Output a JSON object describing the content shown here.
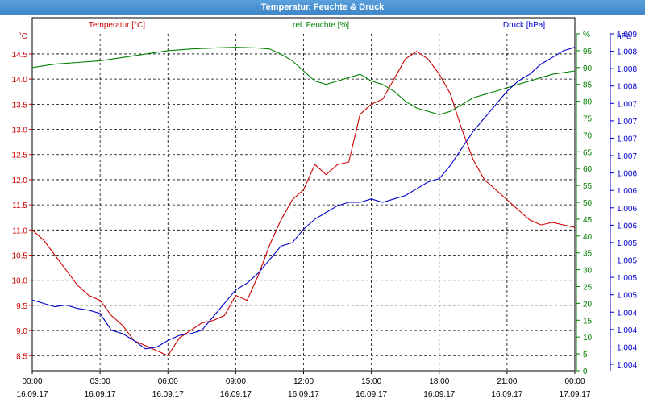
{
  "window": {
    "title": "Temperatur, Feuchte & Druck"
  },
  "chart_data": {
    "type": "line",
    "colors": {
      "temperature": "#cc0000",
      "humidity": "#008000",
      "pressure": "#0000cc",
      "title_bar": "#4a90d2"
    },
    "x_ticks": [
      {
        "time": "00:00",
        "date": "16.09.17"
      },
      {
        "time": "03:00",
        "date": "16.09.17"
      },
      {
        "time": "06:00",
        "date": "16.09.17"
      },
      {
        "time": "09:00",
        "date": "16.09.17"
      },
      {
        "time": "12:00",
        "date": "16.09.17"
      },
      {
        "time": "15:00",
        "date": "16.09.17"
      },
      {
        "time": "18:00",
        "date": "16.09.17"
      },
      {
        "time": "21:00",
        "date": "16.09.17"
      },
      {
        "time": "00:00",
        "date": "17.09.17"
      }
    ],
    "x_range_hours": [
      0,
      24
    ],
    "axes": {
      "temperature": {
        "unit": "°C",
        "header": "Temperatur [°C]",
        "range": [
          8.2,
          14.9
        ],
        "ticks": [
          "8.5",
          "9.0",
          "9.5",
          "10.0",
          "10.5",
          "11.0",
          "11.5",
          "12.0",
          "12.5",
          "13.0",
          "13.5",
          "14.0",
          "14.5"
        ]
      },
      "humidity": {
        "unit": "%",
        "header": "rel. Feuchte [%]",
        "range": [
          0,
          100
        ],
        "ticks": [
          "0",
          "5",
          "10",
          "15",
          "20",
          "25",
          "30",
          "35",
          "40",
          "45",
          "50",
          "55",
          "60",
          "65",
          "70",
          "75",
          "80",
          "85",
          "90",
          "95",
          "%"
        ]
      },
      "pressure": {
        "unit": "hPa",
        "header": "Druck [hPa]",
        "ticks": [
          "1.004",
          "1.004",
          "1.004",
          "1.004",
          "1.005",
          "1.005",
          "1.005",
          "1.005",
          "1.006",
          "1.006",
          "1.006",
          "1.006",
          "1.007",
          "1.007",
          "1.007",
          "1.007",
          "1.008",
          "1.008",
          "1.008",
          "1.009"
        ]
      }
    },
    "grid": true,
    "series": [
      {
        "key": "temperature",
        "name": "Temperatur [°C]",
        "axis": "temperature",
        "x_hours": [
          0,
          0.5,
          1,
          1.5,
          2,
          2.5,
          3,
          3.5,
          4,
          4.5,
          5,
          5.5,
          6,
          6.5,
          7,
          7.5,
          8,
          8.5,
          9,
          9.5,
          10,
          10.5,
          11,
          11.5,
          12,
          12.5,
          13,
          13.5,
          14,
          14.5,
          15,
          15.5,
          16,
          16.5,
          17,
          17.5,
          18,
          18.5,
          19,
          19.5,
          20,
          20.5,
          21,
          21.5,
          22,
          22.5,
          23,
          23.5,
          24
        ],
        "values": [
          11.0,
          10.8,
          10.5,
          10.2,
          9.9,
          9.7,
          9.6,
          9.3,
          9.1,
          8.8,
          8.7,
          8.6,
          8.5,
          8.85,
          9.0,
          9.15,
          9.2,
          9.3,
          9.7,
          9.6,
          10.1,
          10.7,
          11.2,
          11.6,
          11.8,
          12.3,
          12.1,
          12.3,
          12.35,
          13.3,
          13.5,
          13.6,
          14.0,
          14.4,
          14.55,
          14.4,
          14.1,
          13.7,
          13.0,
          12.4,
          12.0,
          11.8,
          11.6,
          11.4,
          11.2,
          11.1,
          11.15,
          11.1,
          11.05
        ]
      },
      {
        "key": "humidity",
        "name": "rel. Feuchte [%]",
        "axis": "humidity",
        "x_hours": [
          0,
          1,
          2,
          3,
          4,
          5,
          6,
          7,
          8,
          9,
          10,
          10.5,
          11,
          11.5,
          12,
          12.5,
          13,
          13.5,
          14,
          14.5,
          15,
          15.5,
          16,
          16.5,
          17,
          17.5,
          18,
          18.5,
          19,
          19.5,
          20,
          20.5,
          21,
          21.5,
          22,
          22.5,
          23,
          23.5,
          24
        ],
        "values": [
          90,
          91,
          91.5,
          92,
          93,
          94,
          95,
          95.5,
          95.8,
          96,
          95.8,
          95.5,
          94,
          92,
          89,
          86,
          85,
          86,
          87,
          88,
          86,
          85,
          83,
          80,
          78,
          77,
          76,
          77,
          79,
          81,
          82,
          83,
          84,
          85,
          86,
          87,
          88,
          88.5,
          89
        ]
      },
      {
        "key": "pressure",
        "name": "Druck [hPa]",
        "axis": "pressure",
        "note": "pressure plotted in relative units (0 = axis bottom, 100 = axis top); axis labels shown as printed",
        "x_hours": [
          0,
          0.5,
          1,
          1.5,
          2,
          2.5,
          3,
          3.5,
          4,
          4.5,
          5,
          5.5,
          6,
          6.5,
          7,
          7.5,
          8,
          8.5,
          9,
          9.5,
          10,
          10.5,
          11,
          11.5,
          12,
          12.5,
          13,
          13.5,
          14,
          14.5,
          15,
          15.5,
          16,
          16.5,
          17,
          17.5,
          18,
          18.5,
          19,
          19.5,
          20,
          20.5,
          21,
          21.5,
          22,
          22.5,
          23,
          23.5,
          24
        ],
        "values": [
          21,
          20,
          19,
          19.5,
          18.5,
          18,
          17,
          12,
          11,
          9,
          6.5,
          7,
          9,
          10.5,
          11,
          12,
          16,
          20,
          24,
          26,
          29,
          33,
          37,
          38,
          42,
          45,
          47,
          49,
          50,
          50,
          51,
          50,
          51,
          52,
          54,
          56,
          57,
          61,
          66,
          71,
          75,
          79,
          83,
          86,
          88,
          91,
          93,
          95,
          96
        ]
      }
    ]
  }
}
